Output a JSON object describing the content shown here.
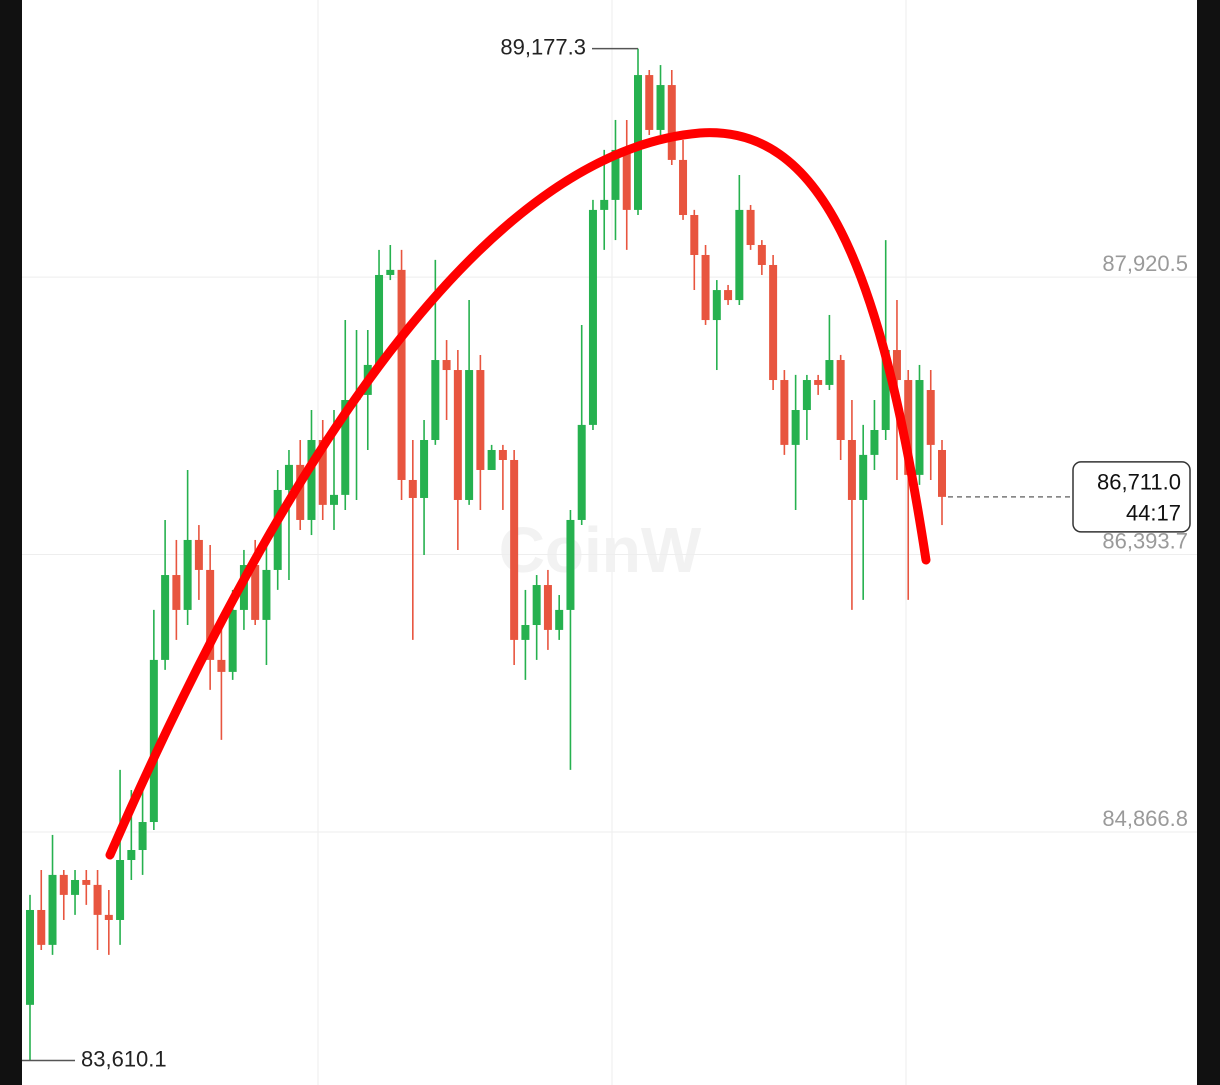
{
  "chart_data": {
    "type": "candlestick",
    "watermark": "CoinW",
    "ylim": [
      83475,
      89445
    ],
    "yticks": [
      {
        "value": 84866.8,
        "label": "84,866.8"
      },
      {
        "value": 86393.7,
        "label": "86,393.7"
      },
      {
        "value": 87920.5,
        "label": "87,920.5"
      }
    ],
    "grid": true,
    "up_color": "#26b14f",
    "down_color": "#e8553f",
    "open": [
      83916,
      84438,
      84246,
      84631,
      84521,
      84603,
      84576,
      84411,
      84383,
      84713,
      84768,
      84922,
      85814,
      86281,
      86089,
      86474,
      86309,
      85814,
      85748,
      86089,
      86336,
      86034,
      86309,
      86749,
      86887,
      86584,
      87024,
      86667,
      86722,
      87244,
      87272,
      87437,
      87932,
      87960,
      86804,
      86705,
      87024,
      87464,
      87409,
      86694,
      87409,
      86859,
      86969,
      86914,
      85924,
      86006,
      86226,
      85979,
      86089,
      86584,
      87107,
      88290,
      88345,
      88620,
      88290,
      89032,
      88730,
      88977,
      88565,
      88262,
      88042,
      87684,
      87849,
      87794,
      88290,
      88097,
      87987,
      87354,
      86997,
      87189,
      87354,
      87327,
      87464,
      87024,
      86694,
      86942,
      87079,
      87519,
      87354,
      86832,
      87299,
      86969
    ],
    "high": [
      84521,
      84658,
      84851,
      84658,
      84658,
      84658,
      84658,
      84548,
      85209,
      85098,
      85153,
      86089,
      86584,
      86474,
      86859,
      86556,
      86446,
      86006,
      86199,
      86419,
      86474,
      86446,
      86859,
      86969,
      87024,
      87189,
      87134,
      87189,
      87684,
      87629,
      87629,
      88070,
      88097,
      88070,
      87024,
      87134,
      88015,
      87574,
      87519,
      87794,
      87492,
      86997,
      86997,
      86969,
      86199,
      86281,
      86309,
      86171,
      86639,
      87657,
      88345,
      88620,
      88785,
      88785,
      89177.3,
      89060,
      89087,
      89060,
      88675,
      88290,
      88097,
      87904,
      87877,
      88482,
      88317,
      88124,
      88042,
      87409,
      87382,
      87382,
      87382,
      87712,
      87492,
      87244,
      87107,
      87244,
      88124,
      87794,
      87409,
      87437,
      87409,
      87024
    ],
    "low": [
      83610.1,
      84218,
      84191,
      84383,
      84411,
      84466,
      84218,
      84191,
      84246,
      84603,
      84631,
      84878,
      85759,
      85924,
      86006,
      86144,
      85649,
      85374,
      85704,
      85979,
      86006,
      85786,
      86199,
      86254,
      86529,
      86501,
      86584,
      86529,
      86639,
      86694,
      86969,
      87409,
      87904,
      86694,
      85924,
      86391,
      86997,
      87134,
      86419,
      86667,
      86639,
      86859,
      86639,
      85786,
      85704,
      85814,
      85869,
      85924,
      85209,
      86556,
      87079,
      88070,
      88124,
      88070,
      88262,
      88702,
      88702,
      88537,
      88235,
      87849,
      87657,
      87409,
      87767,
      87767,
      88070,
      87932,
      87299,
      86942,
      86639,
      87024,
      87272,
      87299,
      86914,
      86089,
      86144,
      86859,
      87024,
      86804,
      86144,
      86777,
      86804,
      86556
    ],
    "close": [
      84438,
      84246,
      84631,
      84521,
      84603,
      84576,
      84411,
      84383,
      84713,
      84768,
      84922,
      85814,
      86281,
      86089,
      86474,
      86309,
      85814,
      85748,
      86089,
      86336,
      86034,
      86309,
      86749,
      86887,
      86584,
      87024,
      86667,
      86722,
      87244,
      87272,
      87437,
      87932,
      87960,
      86804,
      86705,
      87024,
      87464,
      87409,
      86694,
      87409,
      86859,
      86969,
      86914,
      85924,
      86006,
      86226,
      85979,
      86089,
      86584,
      87107,
      88290,
      88345,
      88620,
      88290,
      89032,
      88730,
      88977,
      88565,
      88262,
      88042,
      87684,
      87849,
      87794,
      88290,
      88097,
      87987,
      87354,
      86997,
      87189,
      87354,
      87327,
      87464,
      87024,
      86694,
      86942,
      87079,
      87519,
      87354,
      86832,
      87354,
      86997,
      86711.0
    ],
    "high_marker": {
      "value": 89177.3,
      "label": "89,177.3"
    },
    "low_marker": {
      "value": 83610.1,
      "label": "83,610.1"
    },
    "last_price": {
      "value": 86711.0,
      "label": "86,711.0"
    },
    "countdown": "44:17"
  }
}
